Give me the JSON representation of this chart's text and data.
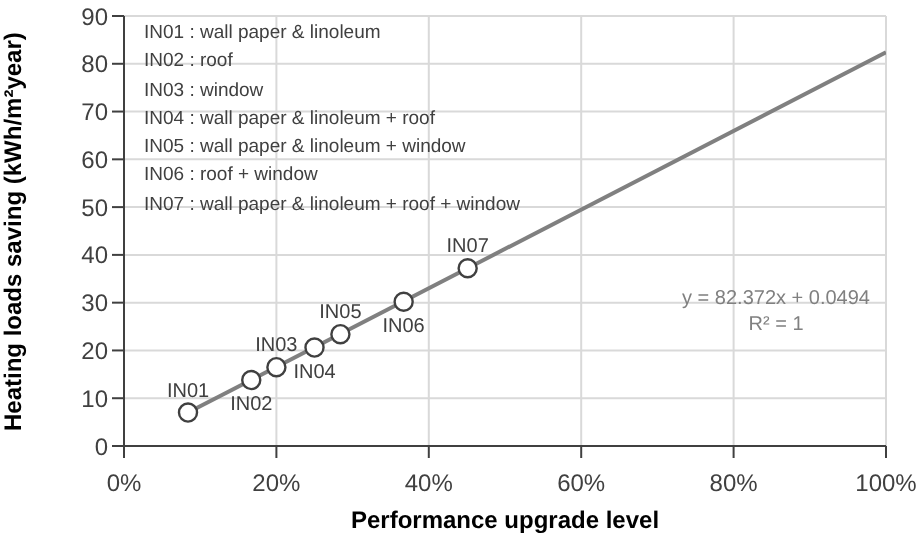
{
  "chart_data": {
    "type": "scatter",
    "xlabel": "Performance upgrade level",
    "ylabel": "Heating loads saving (kWh/m²year)",
    "xlim": [
      0,
      1
    ],
    "xticks": [
      {
        "value": 0,
        "label": "0%"
      },
      {
        "value": 0.2,
        "label": "20%"
      },
      {
        "value": 0.4,
        "label": "40%"
      },
      {
        "value": 0.6,
        "label": "60%"
      },
      {
        "value": 0.8,
        "label": "80%"
      },
      {
        "value": 1,
        "label": "100%"
      }
    ],
    "ylim": [
      0,
      90
    ],
    "yticks": [
      0,
      10,
      20,
      30,
      40,
      50,
      60,
      70,
      80,
      90
    ],
    "grid": true,
    "series": [
      {
        "type": "line",
        "color": "#808080",
        "marker": "none",
        "line_style": "solid",
        "x": [
          0.084,
          1
        ],
        "values": [
          7.0,
          82.4
        ]
      },
      {
        "color": "#404040",
        "marker": "circle",
        "x": [
          0.084,
          0.167,
          0.2,
          0.25,
          0.284,
          0.367,
          0.451
        ],
        "values": [
          7.0,
          13.8,
          16.5,
          20.6,
          23.4,
          30.2,
          37.2
        ]
      }
    ],
    "annotations": [
      {
        "text": "IN01",
        "x": 0.084,
        "y": 7.0
      },
      {
        "text": "IN02",
        "x": 0.167,
        "y": 13.8
      },
      {
        "text": "IN03",
        "x": 0.2,
        "y": 16.5
      },
      {
        "text": "IN04",
        "x": 0.25,
        "y": 20.6
      },
      {
        "text": "IN05",
        "x": 0.284,
        "y": 23.4
      },
      {
        "text": "IN06",
        "x": 0.367,
        "y": 30.2
      },
      {
        "text": "IN07",
        "x": 0.451,
        "y": 37.2
      },
      "IN01 : wall paper & linoleum",
      "IN02 : roof",
      "IN03 : window",
      "IN04 : wall paper & linoleum + roof",
      "IN05 : wall paper & linoleum + window",
      "IN06 : roof + window",
      "IN07 : wall paper & linoleum + roof + window",
      "y = 82.372x + 0.0494",
      "R² = 1"
    ]
  }
}
